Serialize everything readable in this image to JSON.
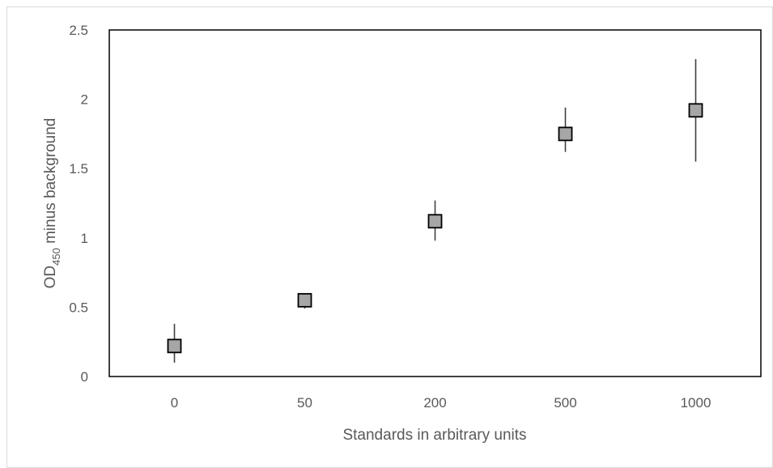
{
  "chart_data": {
    "type": "scatter",
    "categories": [
      "0",
      "50",
      "200",
      "500",
      "1000"
    ],
    "values": [
      0.22,
      0.55,
      1.12,
      1.75,
      1.92
    ],
    "errors_high": [
      0.38,
      0.6,
      1.27,
      1.94,
      2.29
    ],
    "errors_low": [
      0.1,
      0.49,
      0.98,
      1.62,
      1.55
    ],
    "xlabel": "Standards in arbitrary units",
    "ylabel": {
      "main": "OD",
      "subscript": "450",
      "rest": " minus background"
    },
    "ylim": [
      0,
      2.5
    ],
    "yticks": [
      "0",
      "0.5",
      "1",
      "1.5",
      "2",
      "2.5"
    ],
    "grid": false,
    "marker": {
      "shape": "square",
      "fill": "#a6a6a6",
      "stroke": "#000000"
    },
    "error_bar_color": "#404040"
  }
}
